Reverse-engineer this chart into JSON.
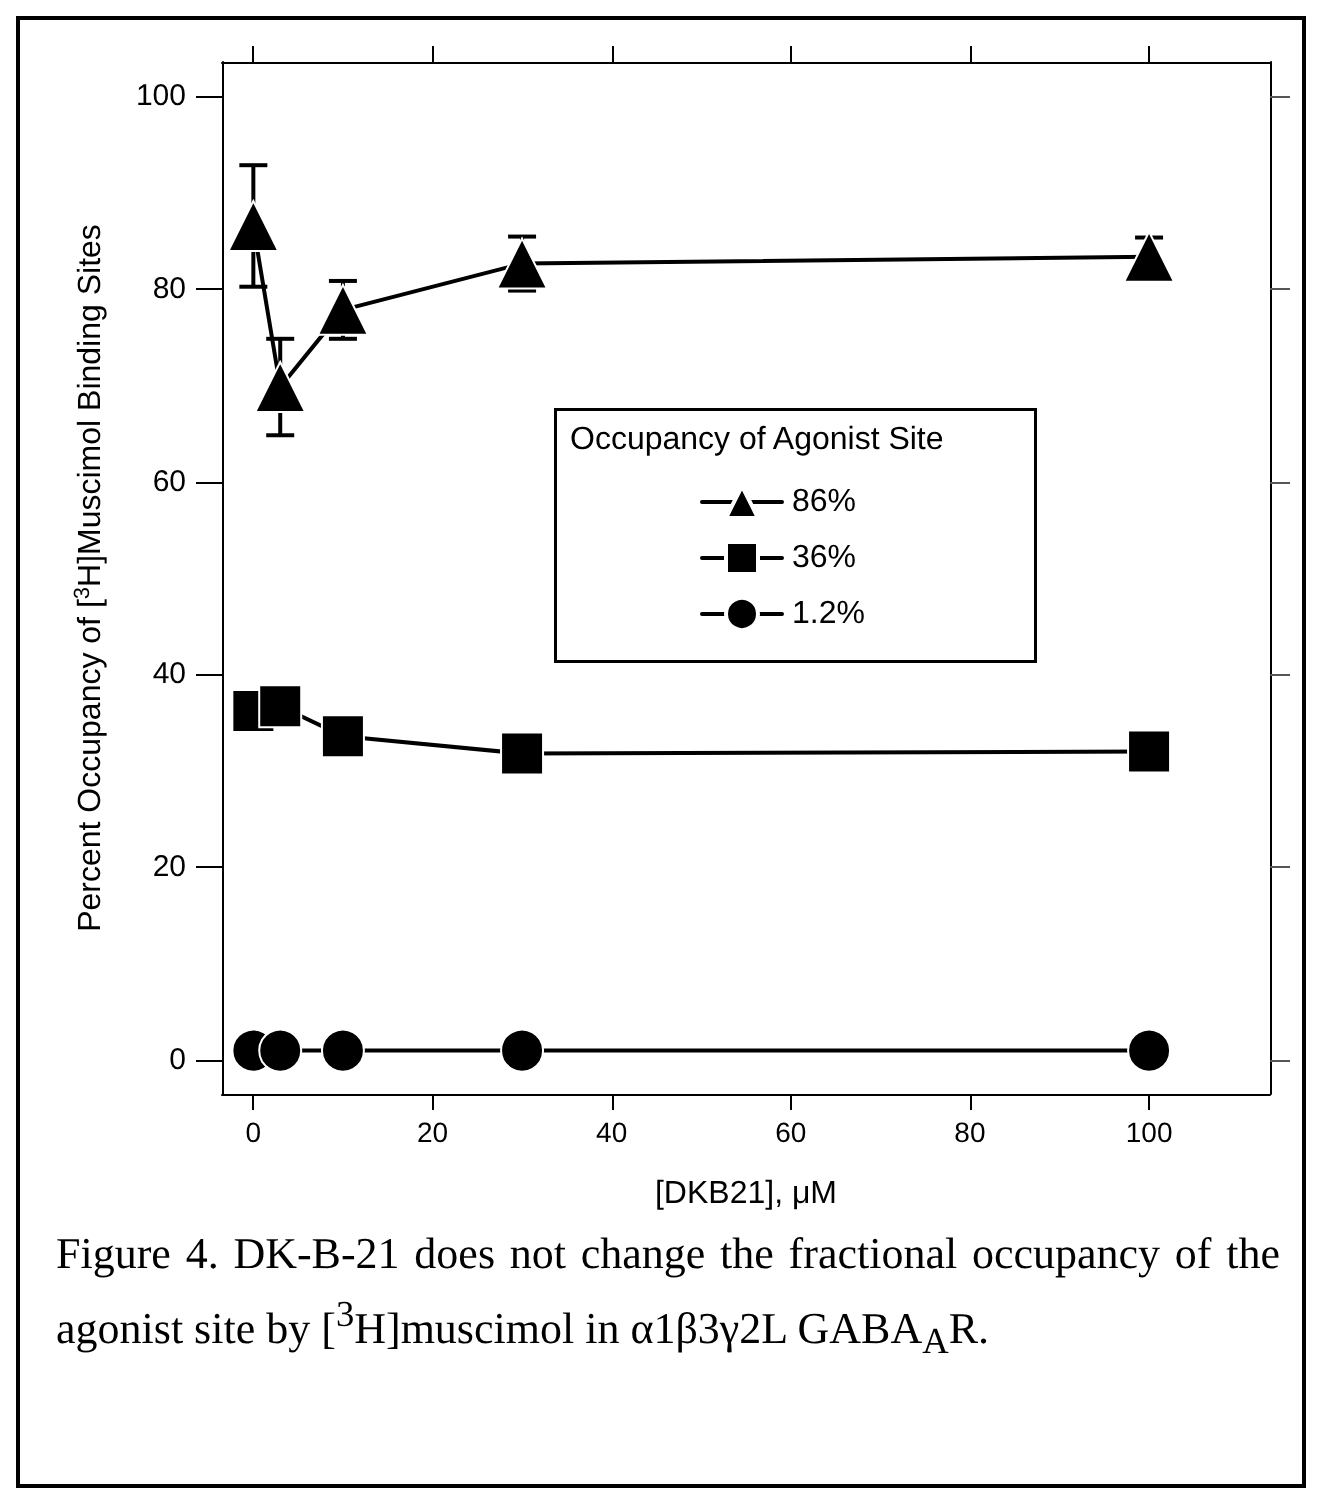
{
  "chart_data": {
    "type": "line",
    "xlabel": "[DKB21], μM",
    "ylabel": "Percent Occupancy of [$^{3}$H]Muscimol Binding Sites",
    "legend_title": "Occupancy of Agonist Site",
    "x": [
      0,
      3,
      10,
      30,
      100
    ],
    "series": [
      {
        "name": "86%",
        "color": "#000000",
        "marker": "triangle",
        "values": [
          86.5,
          69.8,
          77.8,
          82.6,
          83.3
        ],
        "errors": [
          6.3,
          5,
          3,
          2.8,
          2
        ]
      },
      {
        "name": "36%",
        "color": "#000000",
        "marker": "square",
        "values": [
          36.2,
          36.7,
          33.6,
          31.8,
          32.0
        ]
      },
      {
        "name": "1.2%",
        "color": "#000000",
        "marker": "circle",
        "values": [
          1,
          1,
          1,
          1,
          1
        ]
      }
    ],
    "xlim": [
      -3.5,
      113.5
    ],
    "xticks": [
      0,
      20,
      40,
      60,
      80,
      100
    ],
    "ylim": [
      -3.5,
      103.5
    ],
    "yticks": [
      0,
      20,
      40,
      60,
      80,
      100
    ],
    "grid": false,
    "legend": "top",
    "line_style": "solid",
    "annotations": [
      "Figure 4. DK-B-21 does not change the fractional occupancy of the agonist site by [$^{3}$H]muscimol in α1β3γ2L GABA$_{A}$R."
    ]
  }
}
